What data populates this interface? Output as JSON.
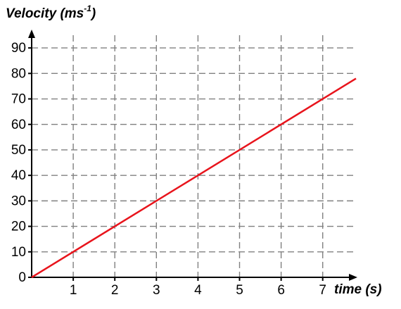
{
  "chart_data": {
    "type": "line",
    "y_label": {
      "text": "Velocity (ms",
      "sup": "-1",
      "end": ")"
    },
    "x_label": "time (s)",
    "x": [
      0,
      7.8
    ],
    "series": [
      {
        "name": "velocity",
        "color": "#e8141c",
        "values": [
          0,
          78
        ]
      }
    ],
    "xlim": [
      0,
      7.8
    ],
    "ylim": [
      0,
      95
    ],
    "xticks": [
      1,
      2,
      3,
      4,
      5,
      6,
      7
    ],
    "yticks": [
      0,
      10,
      20,
      30,
      40,
      50,
      60,
      70,
      80,
      90
    ],
    "grid": true
  }
}
